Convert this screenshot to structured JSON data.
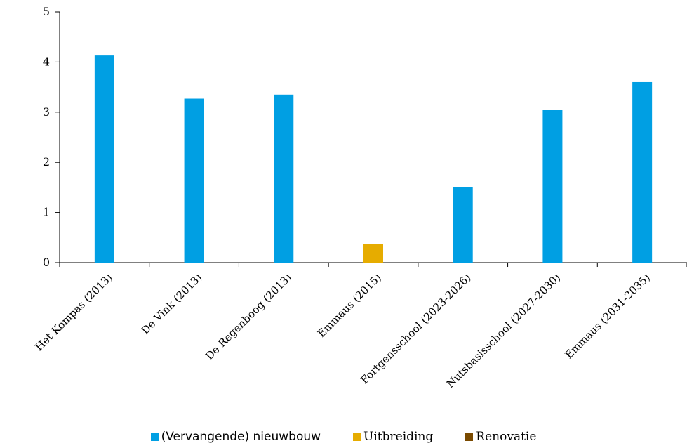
{
  "chart_data": {
    "type": "bar",
    "title": "",
    "xlabel": "",
    "ylabel": "",
    "ylim": [
      0,
      5
    ],
    "yticks": [
      0,
      1,
      2,
      3,
      4,
      5
    ],
    "categories": [
      "Het Kompas (2013)",
      "De Vink (2013)",
      "De Regenboog (2013)",
      "Emmaus (2015)",
      "Fortgensschool (2023-2026)",
      "Nutsbasisschool (2027-2030)",
      "Emmaus (2031-2035)"
    ],
    "series": [
      {
        "name": "(Vervangende) nieuwbouw",
        "color": "#009fe3",
        "values": [
          4.13,
          3.27,
          3.35,
          0,
          1.5,
          3.05,
          3.6
        ]
      },
      {
        "name": "Uitbreiding",
        "color": "#e6ac00",
        "values": [
          0,
          0,
          0,
          0.37,
          0,
          0,
          0
        ]
      },
      {
        "name": "Renovatie",
        "color": "#7a4a00",
        "values": [
          0,
          0,
          0,
          0,
          0,
          0,
          0
        ]
      }
    ],
    "grid": false,
    "legend_position": "bottom"
  }
}
